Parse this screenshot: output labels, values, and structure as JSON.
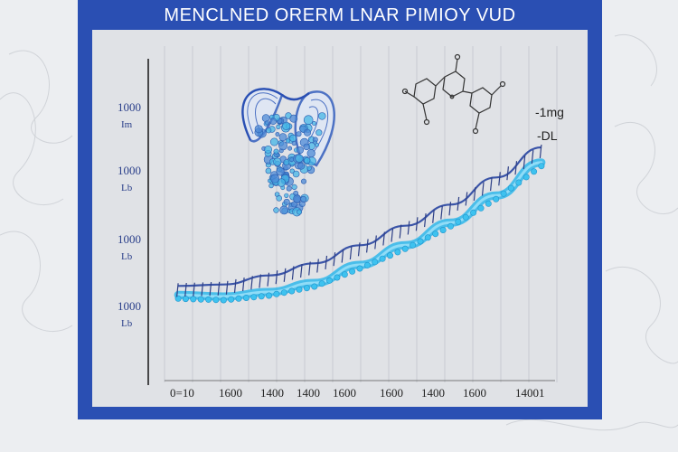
{
  "title": "MENCLNED ORERM LNAR PIMIOY VUD",
  "colors": {
    "frame": "#2a4fb3",
    "panel": "#e0e2e6",
    "background": "#eceef1",
    "line": "#3a54a8",
    "band": "#2fb7ea",
    "illustration": "#4d72c4",
    "molecule": "#333333"
  },
  "illustrations": [
    "organ-illustration",
    "molecule-structure"
  ],
  "chart_data": {
    "type": "line",
    "grid": "vertical",
    "y_tick_labels": [
      {
        "value": "1000",
        "unit": "Im"
      },
      {
        "value": "1000",
        "unit": "Lb"
      },
      {
        "value": "1000",
        "unit": "Lb"
      },
      {
        "value": "1000",
        "unit": "Lb"
      }
    ],
    "x_tick_labels": [
      "0=10",
      "1600",
      "1400",
      "1400",
      "1600",
      "1600",
      "1400",
      "1600",
      "14001"
    ],
    "series": [
      {
        "name": "-1mg",
        "x": [
          0,
          1,
          2,
          3,
          4,
          5,
          6,
          7,
          8
        ],
        "y": [
          0.08,
          0.09,
          0.15,
          0.23,
          0.35,
          0.48,
          0.62,
          0.8,
          1.0
        ]
      },
      {
        "name": "-DL",
        "x": [
          0,
          1,
          2,
          3,
          4,
          5,
          6,
          7,
          8
        ],
        "y": [
          0.02,
          0.01,
          0.04,
          0.1,
          0.22,
          0.35,
          0.5,
          0.68,
          0.9
        ]
      }
    ],
    "xlim": [
      -0.3,
      8.3
    ],
    "ylim": [
      -0.2,
      1.3
    ]
  }
}
